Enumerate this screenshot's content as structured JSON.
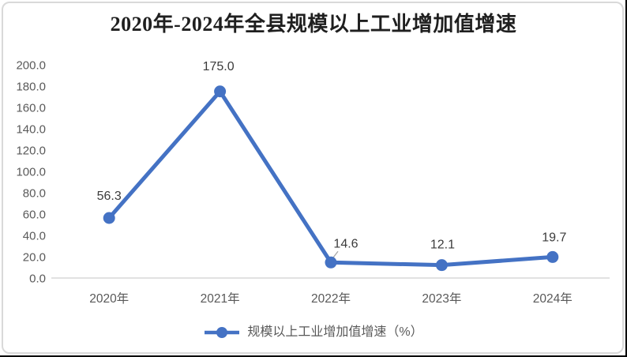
{
  "window": {
    "background": "#FFFFFF"
  },
  "chart": {
    "title": "2020年-2024年全县规模以上工业增加值增速",
    "legend_label": "规模以上工业增加值增速（%）"
  },
  "chart_data": {
    "type": "line",
    "title": "2020年-2024年全县规模以上工业增加值增速",
    "categories": [
      "2020年",
      "2021年",
      "2022年",
      "2023年",
      "2024年"
    ],
    "series": [
      {
        "name": "规模以上工业增加值增速（%）",
        "values": [
          56.3,
          175.0,
          14.6,
          12.1,
          19.7
        ]
      }
    ],
    "data_labels": [
      "56.3",
      "175.0",
      "14.6",
      "12.1",
      "19.7"
    ],
    "xlabel": "",
    "ylabel": "",
    "ylim": [
      0,
      200
    ],
    "ytick_step": 20,
    "ytick_labels": [
      "0.0",
      "20.0",
      "40.0",
      "60.0",
      "80.0",
      "100.0",
      "120.0",
      "140.0",
      "160.0",
      "180.0",
      "200.0"
    ],
    "grid": false,
    "legend_position": "bottom",
    "marker": "circle",
    "colors": {
      "line": "#4472C4",
      "marker": "#4472C4",
      "axis_line": "#D9D9D9",
      "tick_text": "#595959",
      "data_label_text": "#3B3B3B",
      "leader_line": "#A6A6A6",
      "title_text": "#1F1F1F",
      "legend_text": "#595959",
      "panel_border": "#D9D9D9",
      "edge": "#000000"
    }
  }
}
